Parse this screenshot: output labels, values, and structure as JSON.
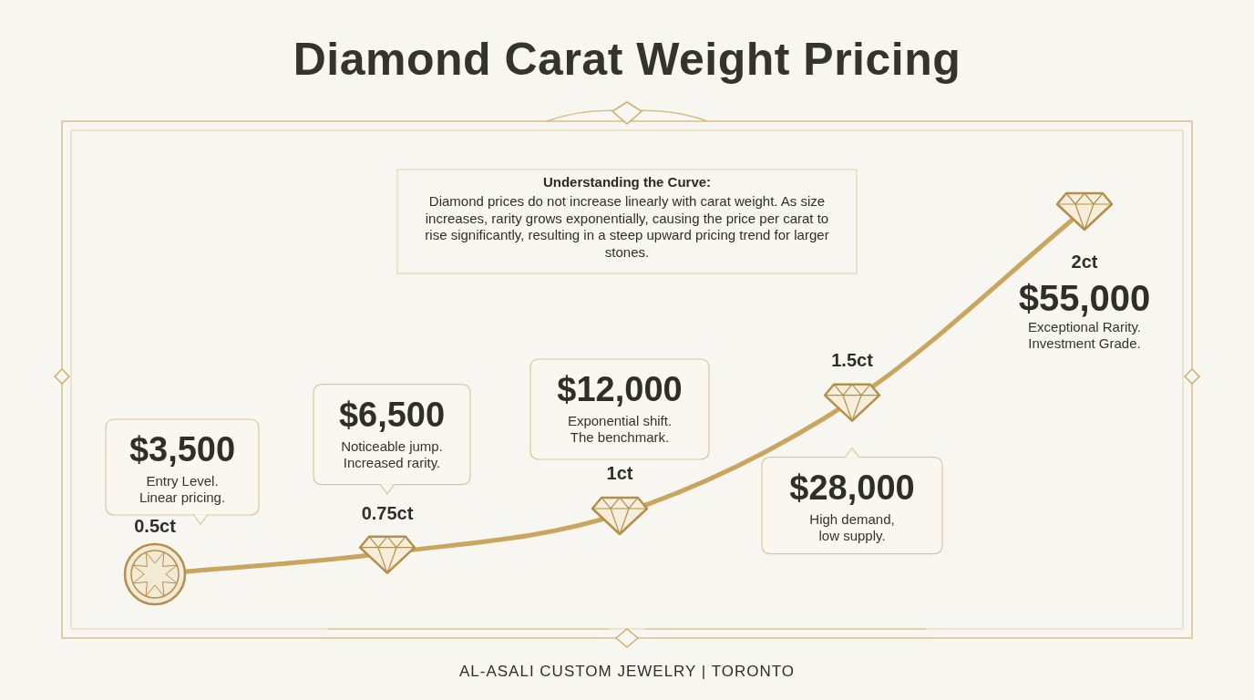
{
  "chart_data": {
    "type": "line",
    "title": "Diamond Carat Weight Pricing",
    "callout": {
      "title": "Understanding the Curve:",
      "text": "Diamond prices do not increase linearly with carat weight. As size increases, rarity grows exponentially, causing the price per carat to rise significantly, resulting in a steep upward pricing trend for larger stones."
    },
    "categories": [
      "0.5ct",
      "0.75ct",
      "1ct",
      "1.5ct",
      "2ct"
    ],
    "values": [
      3500,
      6500,
      12000,
      28000,
      55000
    ],
    "value_labels": [
      "$3,500",
      "$6,500",
      "$12,000",
      "$28,000",
      "$55,000"
    ],
    "annotations": [
      [
        "Entry Level.",
        "Linear pricing."
      ],
      [
        "Noticeable jump.",
        "Increased rarity."
      ],
      [
        "Exponential shift.",
        "The benchmark."
      ],
      [
        "High demand,",
        "low supply."
      ],
      [
        "Exceptional Rarity.",
        "Investment Grade."
      ]
    ],
    "color": "#c9a55e",
    "data_labels": true,
    "tick_labels": false,
    "grid": false,
    "footer": "AL-ASALI CUSTOM JEWELRY | TORONTO"
  }
}
